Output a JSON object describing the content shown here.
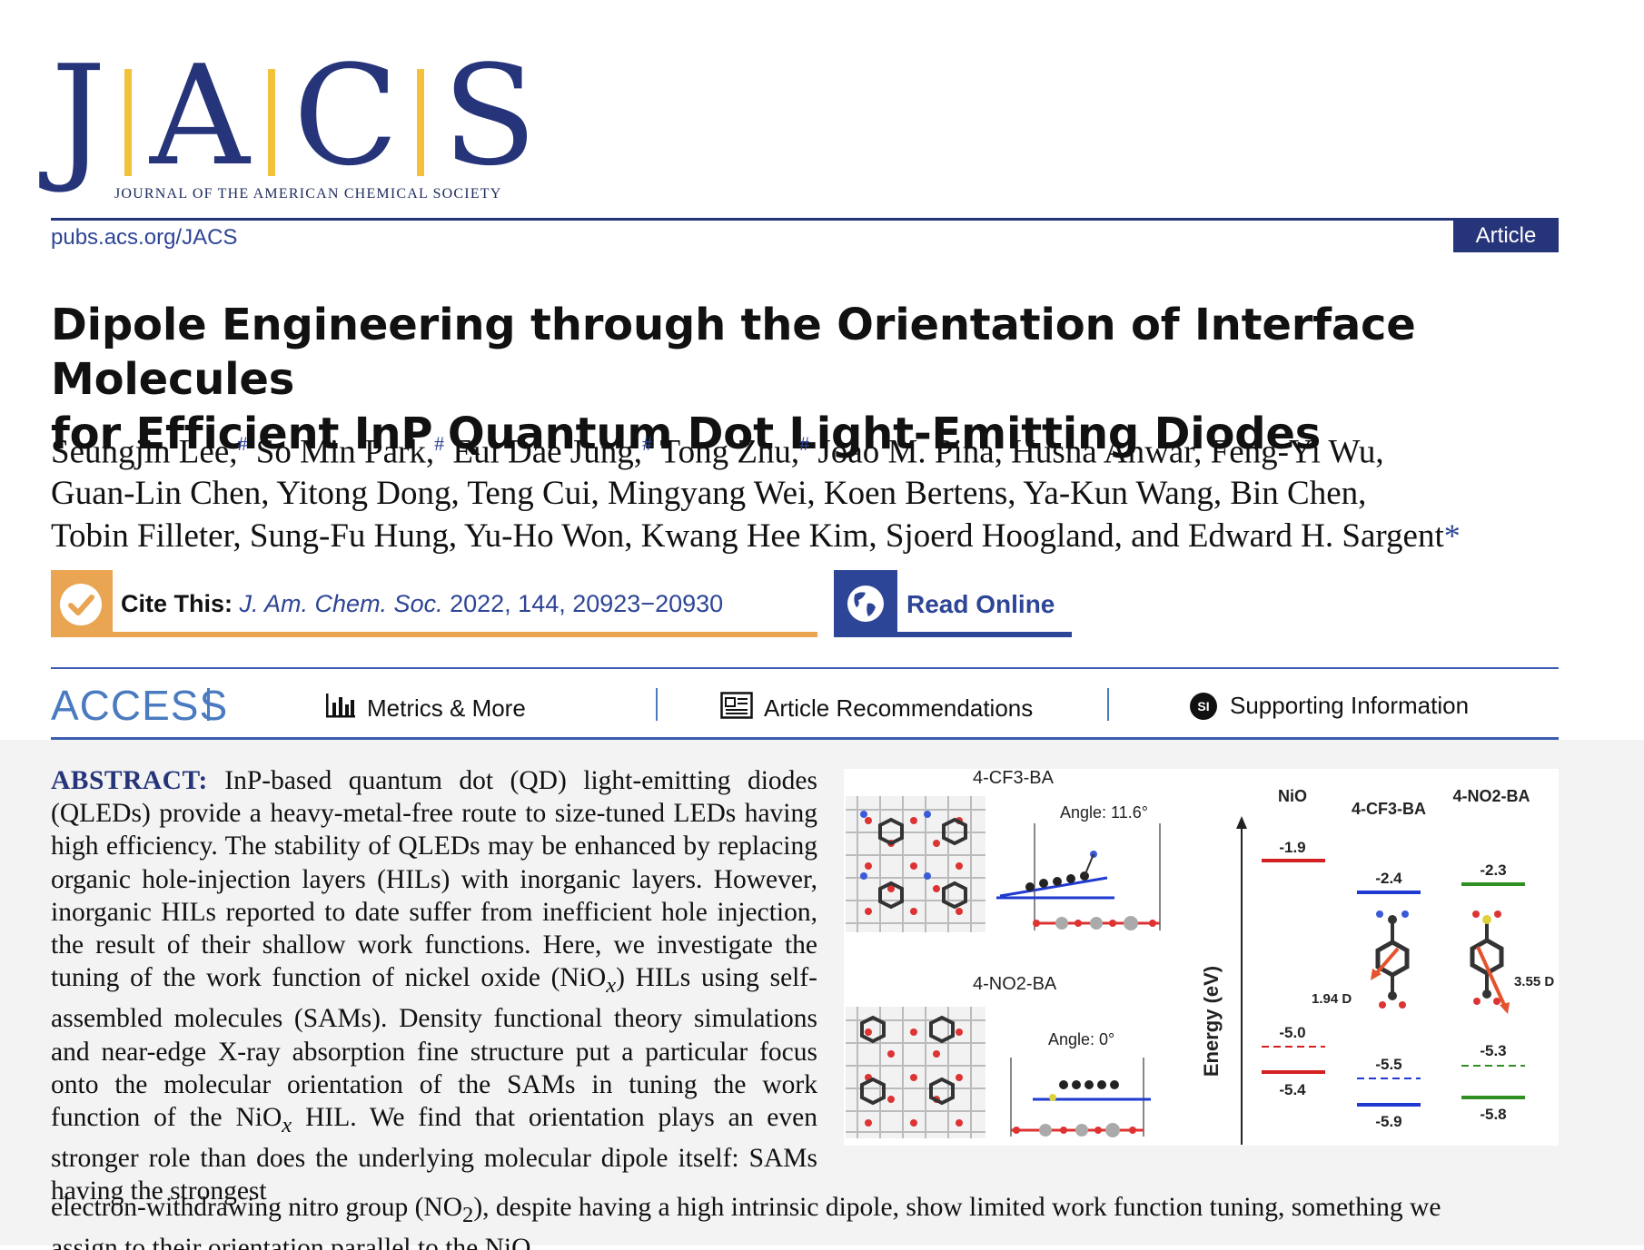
{
  "journal": {
    "letters": [
      "J",
      "A",
      "C",
      "S"
    ],
    "subtitle": "JOURNAL OF THE AMERICAN CHEMICAL SOCIETY",
    "url": "pubs.acs.org/JACS",
    "article_type": "Article",
    "colors": {
      "navy": "#26357a",
      "gold": "#f3c13a",
      "orange": "#e9a552",
      "blue": "#2d4596"
    }
  },
  "title": {
    "line1": "Dipole Engineering through the Orientation of Interface Molecules",
    "line2": "for Efficient InP Quantum Dot Light-Emitting Diodes"
  },
  "authors": {
    "a1": "Seungjin Lee,",
    "a2": "So Min Park,",
    "a3": "Eui Dae Jung,",
    "a4": "Tong Zhu,",
    "mark": "#",
    "rest1": "Joao M. Pina, Husna Anwar, Feng-Yi Wu,",
    "line2": "Guan-Lin Chen, Yitong Dong, Teng Cui, Mingyang Wei, Koen Bertens, Ya-Kun Wang, Bin Chen,",
    "line3": "Tobin Filleter, Sung-Fu Hung, Yu-Ho Won, Kwang Hee Kim, Sjoerd Hoogland, and Edward H. Sargent",
    "corresponding": "*"
  },
  "cite": {
    "label": "Cite This:",
    "journal_abbrev": "J. Am. Chem. Soc.",
    "ref": "2022, 144, 20923−20930",
    "icon": "checkmark-icon"
  },
  "read_online": {
    "label": "Read Online",
    "icon": "globe-icon"
  },
  "access": {
    "label": "ACCESS",
    "items": [
      {
        "label": "Metrics & More",
        "icon": "bar-chart-icon"
      },
      {
        "label": "Article Recommendations",
        "icon": "newspaper-icon"
      },
      {
        "label": "Supporting Information",
        "icon": "si-icon",
        "icon_text": "SI"
      }
    ]
  },
  "abstract": {
    "heading": "ABSTRACT:",
    "p1": "InP-based quantum dot (QD) light-emitting diodes (QLEDs) provide a heavy-metal-free route to size-tuned LEDs having high efficiency. The stability of QLEDs may be enhanced by replacing organic hole-injection layers (HILs) with inorganic layers. However, inorganic HILs reported to date suffer from inefficient hole injection, the result of their shallow work functions. Here, we investigate the tuning of the work function of nickel oxide (NiO",
    "sub_x": "x",
    "p2": ") HILs using self-assembled molecules (SAMs). Density functional theory simulations and near-edge X-ray absorption fine structure put a particular focus onto the molecular orientation of the SAMs in tuning the work function of the NiO",
    "p3": " HIL. We find that orientation plays an even stronger role than does the underlying molecular dipole itself: SAMs having the strongest",
    "wide1a": "electron-withdrawing nitro group (NO",
    "sub_2": "2",
    "wide1b": "), despite having a high intrinsic dipole, show limited work function tuning, something we",
    "wide2": "assign to their orientation parallel to the NiO"
  },
  "figure": {
    "panel_top": {
      "label": "4-CF3-BA",
      "angle": "Angle: 11.6°"
    },
    "panel_bottom": {
      "label": "4-NO2-BA",
      "angle": "Angle: 0°"
    },
    "energy_axis": "Energy (eV)",
    "columns": [
      "NiO",
      "4-CF3-BA",
      "4-NO2-BA"
    ],
    "levels": {
      "nio": [
        "-1.9",
        "-5.0",
        "-5.4"
      ],
      "cf3": [
        "-2.4",
        "-5.5",
        "-5.9"
      ],
      "no2": [
        "-2.3",
        "-5.3",
        "-5.8"
      ]
    },
    "dipoles": {
      "cf3": "1.94 D",
      "no2": "3.55 D"
    }
  }
}
